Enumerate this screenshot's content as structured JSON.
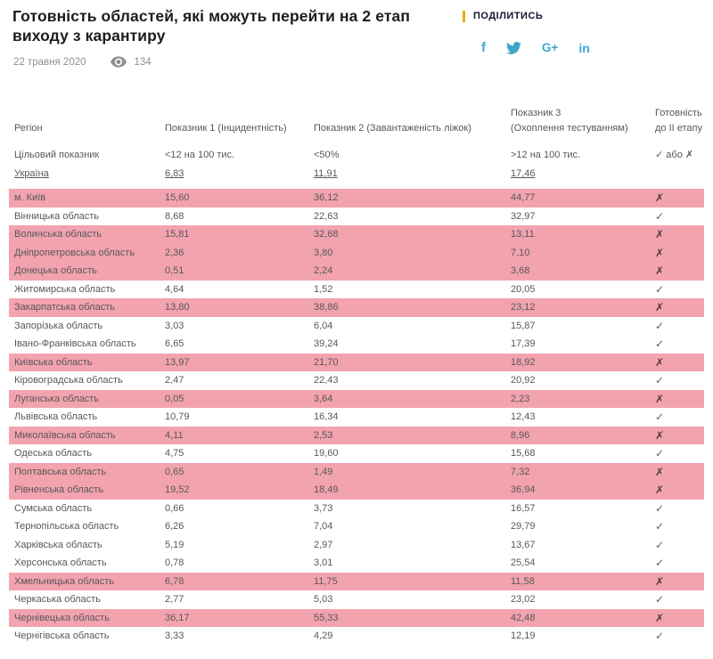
{
  "header": {
    "title": "Готовність областей, які можуть перейти на 2 етап виходу з карантиру",
    "date": "22 травня 2020",
    "views": "134"
  },
  "share": {
    "label": "ПОДІЛИТИСЬ",
    "accent_color": "#f2a900",
    "icon_color": "#3fa6cb",
    "icons": [
      {
        "name": "facebook-icon",
        "glyph": "f"
      },
      {
        "name": "twitter-icon",
        "glyph": "twitter-bird"
      },
      {
        "name": "googleplus-icon",
        "glyph": "G+"
      },
      {
        "name": "linkedin-icon",
        "glyph": "in"
      }
    ]
  },
  "table": {
    "highlight_color": "#f2a3ae",
    "columns": [
      {
        "line1": "",
        "line2": "Регіон"
      },
      {
        "line1": "",
        "line2": "Показник 1 (Інцидентність)"
      },
      {
        "line1": "",
        "line2": "Показник 2 (Завантаженість ліжок)"
      },
      {
        "line1": "Показник 3",
        "line2": "(Охоплення тестуванням)"
      },
      {
        "line1": "Готовність",
        "line2": "до II етапу"
      }
    ],
    "target_row": {
      "region": "Цільовий показник",
      "p1": "<12 на 100 тис.",
      "p2": "<50%",
      "p3": ">12 на 100 тис.",
      "ready": "✓ або ✗"
    },
    "ukraine_row": {
      "region": "Україна",
      "p1": "6,83",
      "p2": "11,91",
      "p3": "17,46",
      "ready": ""
    },
    "rows": [
      {
        "region": "м. Київ",
        "p1": "15,60",
        "p2": "36,12",
        "p3": "44,77",
        "ready": "✗",
        "highlight": true
      },
      {
        "region": "Вінницька область",
        "p1": "8,68",
        "p2": "22,63",
        "p3": "32,97",
        "ready": "✓",
        "highlight": false
      },
      {
        "region": "Волинська область",
        "p1": "15,81",
        "p2": "32,68",
        "p3": "13,11",
        "ready": "✗",
        "highlight": true
      },
      {
        "region": "Дніпропетровська область",
        "p1": "2,36",
        "p2": "3,80",
        "p3": "7,10",
        "ready": "✗",
        "highlight": true
      },
      {
        "region": "Донецька область",
        "p1": "0,51",
        "p2": "2,24",
        "p3": "3,68",
        "ready": "✗",
        "highlight": true
      },
      {
        "region": "Житомирська область",
        "p1": "4,64",
        "p2": "1,52",
        "p3": "20,05",
        "ready": "✓",
        "highlight": false
      },
      {
        "region": "Закарпатська область",
        "p1": "13,80",
        "p2": "38,86",
        "p3": "23,12",
        "ready": "✗",
        "highlight": true
      },
      {
        "region": "Запорізька область",
        "p1": "3,03",
        "p2": "6,04",
        "p3": "15,87",
        "ready": "✓",
        "highlight": false
      },
      {
        "region": "Івано-Франківська область",
        "p1": "6,65",
        "p2": "39,24",
        "p3": "17,39",
        "ready": "✓",
        "highlight": false
      },
      {
        "region": "Київська область",
        "p1": "13,97",
        "p2": "21,70",
        "p3": "18,92",
        "ready": "✗",
        "highlight": true
      },
      {
        "region": "Кіровоградська область",
        "p1": "2,47",
        "p2": "22,43",
        "p3": "20,92",
        "ready": "✓",
        "highlight": false
      },
      {
        "region": "Луганська область",
        "p1": "0,05",
        "p2": "3,64",
        "p3": "2,23",
        "ready": "✗",
        "highlight": true
      },
      {
        "region": "Львівська область",
        "p1": "10,79",
        "p2": "16,34",
        "p3": "12,43",
        "ready": "✓",
        "highlight": false
      },
      {
        "region": "Миколаївська область",
        "p1": "4,11",
        "p2": "2,53",
        "p3": "8,96",
        "ready": "✗",
        "highlight": true
      },
      {
        "region": "Одеська область",
        "p1": "4,75",
        "p2": "19,60",
        "p3": "15,68",
        "ready": "✓",
        "highlight": false
      },
      {
        "region": "Полтавська область",
        "p1": "0,65",
        "p2": "1,49",
        "p3": "7,32",
        "ready": "✗",
        "highlight": true
      },
      {
        "region": "Рівненська область",
        "p1": "19,52",
        "p2": "18,49",
        "p3": "36,94",
        "ready": "✗",
        "highlight": true
      },
      {
        "region": "Сумська область",
        "p1": "0,66",
        "p2": "3,73",
        "p3": "16,57",
        "ready": "✓",
        "highlight": false
      },
      {
        "region": "Тернопільська область",
        "p1": "6,26",
        "p2": "7,04",
        "p3": "29,79",
        "ready": "✓",
        "highlight": false
      },
      {
        "region": "Харківська область",
        "p1": "5,19",
        "p2": "2,97",
        "p3": "13,67",
        "ready": "✓",
        "highlight": false
      },
      {
        "region": "Херсонська область",
        "p1": "0,78",
        "p2": "3,01",
        "p3": "25,54",
        "ready": "✓",
        "highlight": false
      },
      {
        "region": "Хмельницька область",
        "p1": "6,78",
        "p2": "11,75",
        "p3": "11,58",
        "ready": "✗",
        "highlight": true
      },
      {
        "region": "Черкаська область",
        "p1": "2,77",
        "p2": "5,03",
        "p3": "23,02",
        "ready": "✓",
        "highlight": false
      },
      {
        "region": "Чернівецька область",
        "p1": "36,17",
        "p2": "55,33",
        "p3": "42,48",
        "ready": "✗",
        "highlight": true
      },
      {
        "region": "Чернігівська область",
        "p1": "3,33",
        "p2": "4,29",
        "p3": "12,19",
        "ready": "✓",
        "highlight": false
      }
    ]
  }
}
